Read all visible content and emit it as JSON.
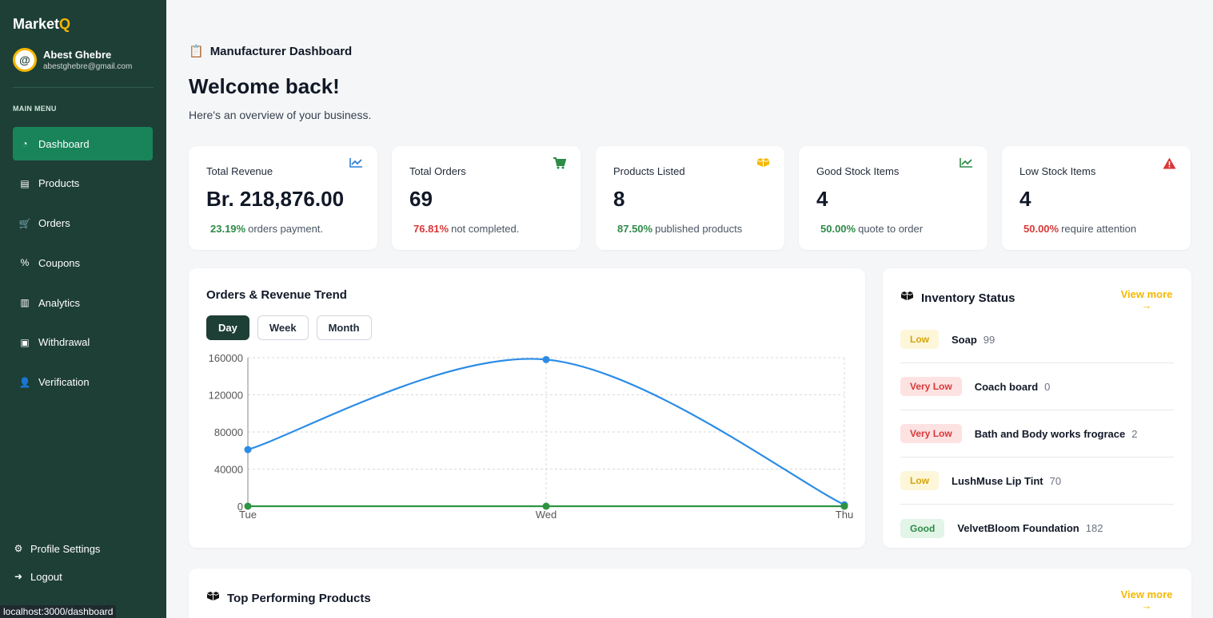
{
  "app": {
    "brand_main": "Market",
    "brand_accent": "Q"
  },
  "user": {
    "name": "Abest Ghebre",
    "email": "abestghebre@gmail.com",
    "avatar_glyph": "@"
  },
  "sidebar": {
    "menu_title": "MAIN MENU",
    "items": [
      {
        "label": "Dashboard",
        "icon": "gauge-icon",
        "glyph": "◔",
        "active": true
      },
      {
        "label": "Products",
        "icon": "boxes-icon",
        "glyph": "▤"
      },
      {
        "label": "Orders",
        "icon": "cart-icon",
        "glyph": "🛒"
      },
      {
        "label": "Coupons",
        "icon": "percent-icon",
        "glyph": "%"
      },
      {
        "label": "Analytics",
        "icon": "bar-chart-icon",
        "glyph": "▥"
      },
      {
        "label": "Withdrawal",
        "icon": "money-icon",
        "glyph": "▣"
      },
      {
        "label": "Verification",
        "icon": "user-check-icon",
        "glyph": "👤"
      }
    ],
    "bottom": [
      {
        "label": "Profile Settings",
        "icon": "gear-icon",
        "glyph": "⚙"
      },
      {
        "label": "Logout",
        "icon": "logout-icon",
        "glyph": "➜"
      }
    ],
    "status_url": "localhost:3000/dashboard"
  },
  "header": {
    "title": "Manufacturer Dashboard",
    "welcome": "Welcome back!",
    "subtitle": "Here's an overview of your business."
  },
  "stats": [
    {
      "label": "Total Revenue",
      "value": "Br. 218,876.00",
      "pct": "23.19%",
      "note": "orders payment.",
      "pct_color": "#2e8b48",
      "icon": "trend-up-icon",
      "icon_color": "#2b7fd6"
    },
    {
      "label": "Total Orders",
      "value": "69",
      "pct": "76.81%",
      "note": "not completed.",
      "pct_color": "#d93838",
      "icon": "cart-icon",
      "icon_color": "#2e8b48"
    },
    {
      "label": "Products Listed",
      "value": "8",
      "pct": "87.50%",
      "note": "published products",
      "pct_color": "#2e8b48",
      "icon": "boxes-icon",
      "icon_color": "#f5b800"
    },
    {
      "label": "Good Stock Items",
      "value": "4",
      "pct": "50.00%",
      "note": "quote to order",
      "pct_color": "#2e8b48",
      "icon": "trend-up-icon",
      "icon_color": "#2e8b48"
    },
    {
      "label": "Low Stock Items",
      "value": "4",
      "pct": "50.00%",
      "note": "require attention",
      "pct_color": "#d93838",
      "icon": "warning-icon",
      "icon_color": "#d93838"
    }
  ],
  "chart": {
    "title": "Orders & Revenue Trend",
    "toggles": [
      "Day",
      "Week",
      "Month"
    ],
    "active_toggle": "Day"
  },
  "chart_data": {
    "type": "line",
    "x": [
      "Tue",
      "Wed",
      "Thu"
    ],
    "series": [
      {
        "values": [
          61000,
          158000,
          1500
        ],
        "color": "#2b8ce6"
      },
      {
        "values": [
          0,
          0,
          0
        ],
        "color": "#2e9441"
      }
    ],
    "ylim": [
      0,
      160000
    ],
    "yticks": [
      0,
      40000,
      80000,
      120000,
      160000
    ],
    "grid": true
  },
  "inventory": {
    "title": "Inventory Status",
    "view_more": "View more",
    "items": [
      {
        "status": "Low",
        "kind": "low",
        "name": "Soap",
        "qty": "99"
      },
      {
        "status": "Very Low",
        "kind": "verylow",
        "name": "Coach board",
        "qty": "0"
      },
      {
        "status": "Very Low",
        "kind": "verylow",
        "name": "Bath and Body works frograce",
        "qty": "2"
      },
      {
        "status": "Low",
        "kind": "low",
        "name": "LushMuse Lip Tint",
        "qty": "70"
      },
      {
        "status": "Good",
        "kind": "good",
        "name": "VelvetBloom Foundation",
        "qty": "182"
      }
    ]
  },
  "top_products": {
    "title": "Top Performing Products",
    "view_more": "View more"
  }
}
